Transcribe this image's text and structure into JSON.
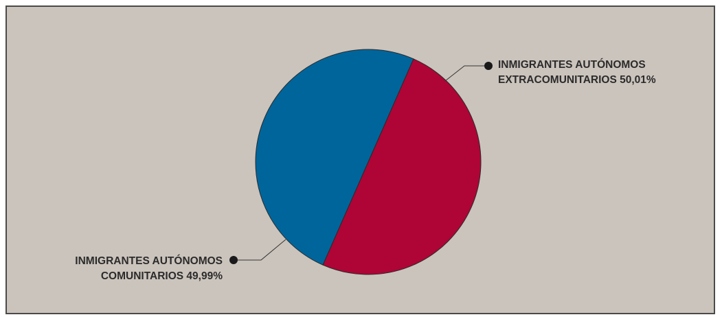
{
  "chart_data": {
    "type": "pie",
    "title": "",
    "series": [
      {
        "name": "INMIGRANTES AUTÓNOMOS EXTRACOMUNITARIOS",
        "value": 50.01,
        "color": "#ae0536",
        "label_lines": [
          "INMIGRANTES AUTÓNOMOS",
          "EXTRACOMUNITARIOS 50,01%"
        ]
      },
      {
        "name": "INMIGRANTES AUTÓNOMOS COMUNITARIOS",
        "value": 49.99,
        "color": "#00659b",
        "label_lines": [
          "INMIGRANTES AUTÓNOMOS",
          "COMUNITARIOS 49,99%"
        ]
      }
    ]
  }
}
